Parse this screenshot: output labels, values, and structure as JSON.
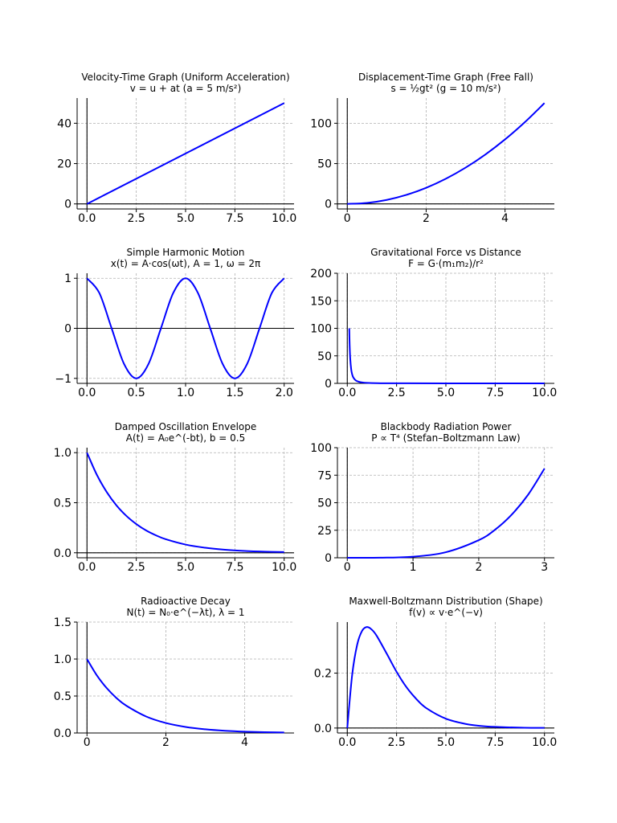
{
  "chart_data": [
    {
      "type": "line",
      "title": "Velocity-Time Graph (Uniform Acceleration)",
      "subtitle": "v = u + at (a = 5 m/s²)",
      "xlabel": "",
      "ylabel": "",
      "xlim": [
        -0.5,
        10.5
      ],
      "ylim": [
        -2.5,
        52.5
      ],
      "xticks": [
        0,
        2.5,
        5,
        7.5,
        10
      ],
      "xtick_labels": [
        "0.0",
        "2.5",
        "5.0",
        "7.5",
        "10.0"
      ],
      "yticks": [
        0,
        20,
        40
      ],
      "ytick_labels": [
        "0",
        "20",
        "40"
      ],
      "grid": true,
      "color": "#0000ff",
      "x": [
        0,
        10
      ],
      "y": [
        0,
        50
      ]
    },
    {
      "type": "line",
      "title": "Displacement-Time Graph (Free Fall)",
      "subtitle": "s = ½gt² (g = 10 m/s²)",
      "xlabel": "",
      "ylabel": "",
      "xlim": [
        -0.25,
        5.25
      ],
      "ylim": [
        -6.25,
        131.25
      ],
      "xticks": [
        0,
        2,
        4
      ],
      "xtick_labels": [
        "0",
        "2",
        "4"
      ],
      "yticks": [
        0,
        50,
        100
      ],
      "ytick_labels": [
        "0",
        "50",
        "100"
      ],
      "grid": true,
      "color": "#0000ff",
      "x": [
        0,
        0.5,
        1,
        1.5,
        2,
        2.5,
        3,
        3.5,
        4,
        4.5,
        5
      ],
      "y": [
        0,
        1.25,
        5,
        11.25,
        20,
        31.25,
        45,
        61.25,
        80,
        101.25,
        125
      ]
    },
    {
      "type": "line",
      "title": "Simple Harmonic Motion",
      "subtitle": "x(t) = A·cos(ωt), A = 1, ω = 2π",
      "xlabel": "",
      "ylabel": "",
      "xlim": [
        -0.1,
        2.1
      ],
      "ylim": [
        -1.1,
        1.1
      ],
      "xticks": [
        0,
        0.5,
        1,
        1.5,
        2
      ],
      "xtick_labels": [
        "0.0",
        "0.5",
        "1.0",
        "1.5",
        "2.0"
      ],
      "yticks": [
        -1,
        0,
        1
      ],
      "ytick_labels": [
        "−1",
        "0",
        "1"
      ],
      "grid": true,
      "color": "#0000ff",
      "x": [
        0,
        0.125,
        0.25,
        0.375,
        0.5,
        0.625,
        0.75,
        0.875,
        1,
        1.125,
        1.25,
        1.375,
        1.5,
        1.625,
        1.75,
        1.875,
        2
      ],
      "y": [
        1,
        0.707,
        0,
        -0.707,
        -1,
        -0.707,
        0,
        0.707,
        1,
        0.707,
        0,
        -0.707,
        -1,
        -0.707,
        0,
        0.707,
        1
      ]
    },
    {
      "type": "line",
      "title": "Gravitational Force vs Distance",
      "subtitle": "F = G·(m₁m₂)/r²",
      "xlabel": "",
      "ylabel": "",
      "xlim": [
        -0.5,
        10.5
      ],
      "ylim": [
        0,
        200
      ],
      "xticks": [
        0,
        2.5,
        5,
        7.5,
        10
      ],
      "xtick_labels": [
        "0.0",
        "2.5",
        "5.0",
        "7.5",
        "10.0"
      ],
      "yticks": [
        0,
        50,
        100,
        150,
        200
      ],
      "ytick_labels": [
        "0",
        "50",
        "100",
        "150",
        "200"
      ],
      "grid": true,
      "color": "#0000ff",
      "x": [
        0.1,
        0.12,
        0.15,
        0.2,
        0.25,
        0.3,
        0.4,
        0.5,
        0.6,
        0.8,
        1,
        1.5,
        2,
        3,
        5,
        7.5,
        10
      ],
      "y": [
        100,
        69.4,
        44.4,
        25,
        16,
        11.1,
        6.25,
        4,
        2.78,
        1.56,
        1,
        0.44,
        0.25,
        0.11,
        0.04,
        0.018,
        0.01
      ]
    },
    {
      "type": "line",
      "title": "Damped Oscillation Envelope",
      "subtitle": "A(t) = A₀e^(-bt), b = 0.5",
      "xlabel": "",
      "ylabel": "",
      "xlim": [
        -0.5,
        10.5
      ],
      "ylim": [
        -0.05,
        1.05
      ],
      "xticks": [
        0,
        2.5,
        5,
        7.5,
        10
      ],
      "xtick_labels": [
        "0.0",
        "2.5",
        "5.0",
        "7.5",
        "10.0"
      ],
      "yticks": [
        0,
        0.5,
        1
      ],
      "ytick_labels": [
        "0.0",
        "0.5",
        "1.0"
      ],
      "grid": true,
      "color": "#0000ff",
      "x": [
        0,
        0.5,
        1,
        1.5,
        2,
        2.5,
        3,
        3.5,
        4,
        5,
        6,
        7,
        8,
        9,
        10
      ],
      "y": [
        1,
        0.779,
        0.607,
        0.472,
        0.368,
        0.287,
        0.223,
        0.174,
        0.135,
        0.082,
        0.05,
        0.03,
        0.018,
        0.011,
        0.007
      ]
    },
    {
      "type": "line",
      "title": "Blackbody Radiation Power",
      "subtitle": "P ∝ T⁴ (Stefan–Boltzmann Law)",
      "xlabel": "",
      "ylabel": "",
      "xlim": [
        -0.15,
        3.15
      ],
      "ylim": [
        0,
        100
      ],
      "xticks": [
        0,
        1,
        2,
        3
      ],
      "xtick_labels": [
        "0",
        "1",
        "2",
        "3"
      ],
      "yticks": [
        0,
        25,
        50,
        75,
        100
      ],
      "ytick_labels": [
        "0",
        "25",
        "50",
        "75",
        "100"
      ],
      "grid": true,
      "color": "#0000ff",
      "x": [
        0,
        0.5,
        1,
        1.5,
        2,
        2.25,
        2.5,
        2.75,
        3
      ],
      "y": [
        0,
        0.06,
        1,
        5.06,
        16,
        25.6,
        39.1,
        57.2,
        81
      ]
    },
    {
      "type": "line",
      "title": "Radioactive Decay",
      "subtitle": "N(t) = N₀·e^(−λt), λ = 1",
      "xlabel": "",
      "ylabel": "",
      "xlim": [
        -0.25,
        5.25
      ],
      "ylim": [
        0,
        1.5
      ],
      "xticks": [
        0,
        2,
        4
      ],
      "xtick_labels": [
        "0",
        "2",
        "4"
      ],
      "yticks": [
        0,
        0.5,
        1,
        1.5
      ],
      "ytick_labels": [
        "0.0",
        "0.5",
        "1.0",
        "1.5"
      ],
      "grid": true,
      "color": "#0000ff",
      "x": [
        0,
        0.25,
        0.5,
        0.75,
        1,
        1.5,
        2,
        2.5,
        3,
        3.5,
        4,
        4.5,
        5
      ],
      "y": [
        1,
        0.779,
        0.607,
        0.472,
        0.368,
        0.223,
        0.135,
        0.082,
        0.05,
        0.03,
        0.018,
        0.011,
        0.007
      ]
    },
    {
      "type": "line",
      "title": "Maxwell-Boltzmann Distribution (Shape)",
      "subtitle": "f(v) ∝ v·e^(−v)",
      "xlabel": "",
      "ylabel": "",
      "xlim": [
        -0.5,
        10.5
      ],
      "ylim": [
        -0.018,
        0.386
      ],
      "xticks": [
        0,
        2.5,
        5,
        7.5,
        10
      ],
      "xtick_labels": [
        "0.0",
        "2.5",
        "5.0",
        "7.5",
        "10.0"
      ],
      "yticks": [
        0,
        0.2
      ],
      "ytick_labels": [
        "0.0",
        "0.2"
      ],
      "grid": true,
      "color": "#0000ff",
      "x": [
        0,
        0.25,
        0.5,
        0.75,
        1,
        1.25,
        1.5,
        2,
        2.5,
        3,
        3.5,
        4,
        5,
        6,
        7,
        8,
        9,
        10
      ],
      "y": [
        0,
        0.195,
        0.303,
        0.354,
        0.368,
        0.358,
        0.335,
        0.271,
        0.205,
        0.149,
        0.106,
        0.073,
        0.034,
        0.015,
        0.006,
        0.003,
        0.001,
        0.0005
      ]
    }
  ]
}
